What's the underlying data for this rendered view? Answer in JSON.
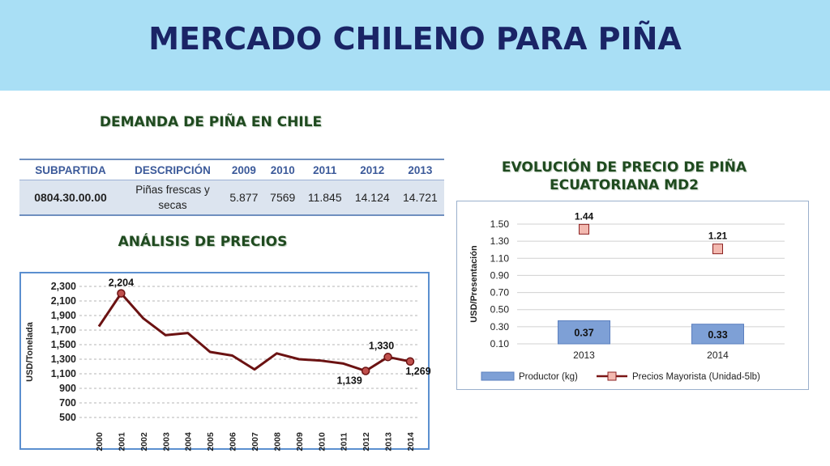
{
  "title": "MERCADO CHILENO PARA PIÑA",
  "demand": {
    "title": "DEMANDA DE PIÑA EN CHILE",
    "headers": [
      "SUBPARTIDA",
      "DESCRIPCIÓN",
      "2009",
      "2010",
      "2011",
      "2012",
      "2013"
    ],
    "row": [
      "0804.30.00.00",
      "Piñas frescas y secas",
      "5.877",
      "7569",
      "11.845",
      "14.124",
      "14.721"
    ]
  },
  "analysis_title": "ANÁLISIS DE PRECIOS",
  "evolution_title": "EVOLUCIÓN DE PRECIO DE PIÑA ECUATORIANA MD2",
  "chart_data": [
    {
      "type": "line",
      "ylabel": "USD/Tonelada",
      "x": [
        "2000",
        "2001",
        "2002",
        "2003",
        "2004",
        "2005",
        "2006",
        "2007",
        "2008",
        "2009",
        "2010",
        "2011",
        "2012",
        "2013",
        "2014"
      ],
      "series": [
        {
          "values": [
            1750,
            2204,
            1860,
            1630,
            1660,
            1400,
            1350,
            1160,
            1380,
            1300,
            1280,
            1240,
            1139,
            1330,
            1269
          ]
        }
      ],
      "annotations": [
        {
          "index": 1,
          "label": "2,204"
        },
        {
          "index": 12,
          "label": "1,139"
        },
        {
          "index": 13,
          "label": "1,330"
        },
        {
          "index": 14,
          "label": "1,269"
        }
      ],
      "yticks": [
        500,
        700,
        900,
        1100,
        1300,
        1500,
        1700,
        1900,
        2100,
        2300
      ],
      "ytick_labels": [
        "500",
        "700",
        "900",
        "1,100",
        "1,300",
        "1,500",
        "1,700",
        "1,900",
        "2,100",
        "2,300"
      ],
      "ylim": [
        500,
        2300
      ],
      "grid": true,
      "line_color": "#6b1212"
    },
    {
      "type": "bar",
      "ylabel": "USD/Presentación",
      "categories": [
        "2013",
        "2014"
      ],
      "series": [
        {
          "name": "Productor (kg)",
          "type": "bar",
          "values": [
            0.37,
            0.33
          ],
          "labels": [
            "0.37",
            "0.33"
          ],
          "color": "#7ea0d6"
        },
        {
          "name": "Precios Mayorista (Unidad-5lb)",
          "type": "line-marker",
          "values": [
            1.44,
            1.21
          ],
          "labels": [
            "1.44",
            "1.21"
          ],
          "color": "#f3b9b0"
        }
      ],
      "yticks": [
        0.1,
        0.3,
        0.5,
        0.7,
        0.9,
        1.1,
        1.3,
        1.5
      ],
      "ytick_labels": [
        "0.10",
        "0.30",
        "0.50",
        "0.70",
        "0.90",
        "1.10",
        "1.30",
        "1.50"
      ],
      "ylim": [
        0.1,
        1.5
      ],
      "grid": true,
      "legend": "bottom"
    }
  ]
}
